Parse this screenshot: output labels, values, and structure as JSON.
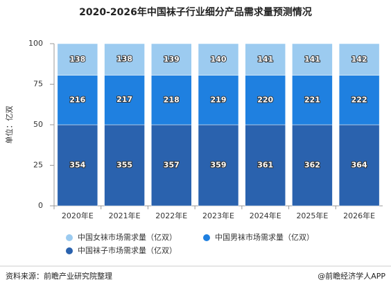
{
  "chart_data": {
    "type": "bar",
    "stacked": "percent",
    "title": "2020-2026年中国袜子行业细分产品需求量预测情况",
    "y_label": "单位：亿双",
    "categories": [
      "2020年E",
      "2021年E",
      "2022年E",
      "2023年E",
      "2024年E",
      "2025年E",
      "2026年E"
    ],
    "series": [
      {
        "name": "中国女袜市场需求量（亿双）",
        "color": "#9ccbf0",
        "values": [
          138,
          138,
          139,
          140,
          141,
          141,
          142
        ]
      },
      {
        "name": "中国男袜市场需求量（亿双）",
        "color": "#1f80e0",
        "values": [
          216,
          217,
          218,
          219,
          220,
          221,
          222
        ]
      },
      {
        "name": "中国袜子市场需求量（亿双）",
        "color": "#2a62ae",
        "values": [
          354,
          355,
          357,
          359,
          361,
          362,
          364
        ]
      }
    ],
    "ylim": [
      0,
      100
    ],
    "yticks": [
      0,
      25,
      50,
      75,
      100
    ],
    "source": "资料来源：前瞻产业研究院整理",
    "brand": "@前瞻经济学人APP"
  }
}
